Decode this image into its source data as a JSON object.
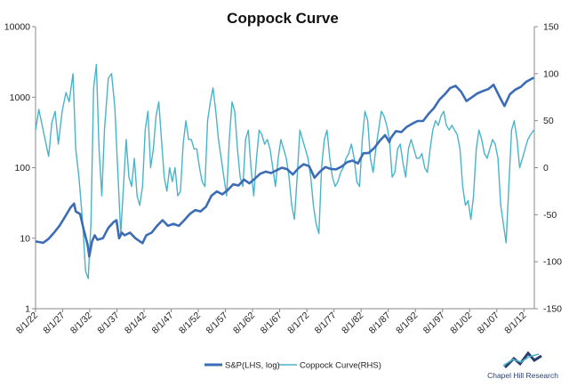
{
  "chart_data": {
    "type": "line",
    "title": "Coppock Curve",
    "y_left": {
      "scale": "log",
      "lim": [
        1,
        10000
      ],
      "ticks": [
        "1",
        "10",
        "100",
        "1000",
        "10000"
      ]
    },
    "y_right": {
      "scale": "linear",
      "lim": [
        -150,
        150
      ],
      "ticks": [
        "150",
        "100",
        "50",
        "0",
        "-50",
        "-100",
        "-150"
      ]
    },
    "x_ticks": [
      "8/1/22",
      "8/1/27",
      "8/1/32",
      "8/1/37",
      "8/1/42",
      "8/1/47",
      "8/1/52",
      "8/1/57",
      "8/1/62",
      "8/1/67",
      "8/1/72",
      "8/1/77",
      "8/1/82",
      "8/1/87",
      "8/1/92",
      "8/1/97",
      "8/1/02",
      "8/1/07",
      "8/1/12"
    ],
    "x_range": [
      1922.6,
      2014.5
    ],
    "grid": false,
    "legend_position": "bottom-center",
    "series": [
      {
        "name": "S&P(LHS, log)",
        "axis": "left",
        "color": "#3b6cb5",
        "points": [
          [
            1922.6,
            9.0
          ],
          [
            1924,
            8.6
          ],
          [
            1925,
            9.8
          ],
          [
            1926,
            12
          ],
          [
            1927,
            15
          ],
          [
            1928,
            20
          ],
          [
            1929,
            27
          ],
          [
            1929.7,
            31
          ],
          [
            1930,
            24
          ],
          [
            1930.8,
            22
          ],
          [
            1931.5,
            13
          ],
          [
            1932.2,
            8
          ],
          [
            1932.5,
            5.5
          ],
          [
            1933,
            9
          ],
          [
            1933.5,
            11
          ],
          [
            1934,
            9.5
          ],
          [
            1935,
            10
          ],
          [
            1936,
            14
          ],
          [
            1937,
            17
          ],
          [
            1937.5,
            18
          ],
          [
            1938,
            10
          ],
          [
            1938.5,
            12
          ],
          [
            1939,
            11
          ],
          [
            1940,
            12
          ],
          [
            1941,
            10
          ],
          [
            1942.3,
            8.5
          ],
          [
            1943,
            11
          ],
          [
            1944,
            12
          ],
          [
            1945,
            15
          ],
          [
            1946,
            18
          ],
          [
            1947,
            15
          ],
          [
            1948,
            16
          ],
          [
            1949,
            15
          ],
          [
            1950,
            18
          ],
          [
            1951,
            22
          ],
          [
            1952,
            25
          ],
          [
            1953,
            24
          ],
          [
            1954,
            28
          ],
          [
            1955,
            40
          ],
          [
            1956,
            46
          ],
          [
            1957,
            42
          ],
          [
            1958,
            48
          ],
          [
            1959,
            58
          ],
          [
            1960,
            56
          ],
          [
            1961,
            68
          ],
          [
            1962,
            60
          ],
          [
            1963,
            70
          ],
          [
            1964,
            82
          ],
          [
            1965,
            88
          ],
          [
            1966,
            84
          ],
          [
            1967,
            92
          ],
          [
            1968,
            100
          ],
          [
            1969,
            95
          ],
          [
            1970,
            80
          ],
          [
            1971,
            98
          ],
          [
            1972,
            112
          ],
          [
            1973,
            105
          ],
          [
            1974,
            72
          ],
          [
            1975,
            88
          ],
          [
            1976,
            102
          ],
          [
            1977,
            96
          ],
          [
            1978,
            95
          ],
          [
            1979,
            104
          ],
          [
            1980,
            120
          ],
          [
            1981,
            126
          ],
          [
            1982,
            115
          ],
          [
            1983,
            160
          ],
          [
            1984,
            162
          ],
          [
            1985,
            190
          ],
          [
            1986,
            240
          ],
          [
            1987,
            290
          ],
          [
            1987.8,
            230
          ],
          [
            1988,
            260
          ],
          [
            1989,
            330
          ],
          [
            1990,
            320
          ],
          [
            1991,
            380
          ],
          [
            1992,
            420
          ],
          [
            1993,
            460
          ],
          [
            1994,
            460
          ],
          [
            1995,
            580
          ],
          [
            1996,
            700
          ],
          [
            1997,
            920
          ],
          [
            1998,
            1100
          ],
          [
            1999,
            1350
          ],
          [
            2000,
            1450
          ],
          [
            2001,
            1200
          ],
          [
            2002,
            880
          ],
          [
            2003,
            1000
          ],
          [
            2004,
            1130
          ],
          [
            2005,
            1220
          ],
          [
            2006,
            1300
          ],
          [
            2007,
            1500
          ],
          [
            2008,
            1050
          ],
          [
            2009,
            750
          ],
          [
            2010,
            1100
          ],
          [
            2011,
            1280
          ],
          [
            2012,
            1400
          ],
          [
            2013,
            1650
          ],
          [
            2014.4,
            1900
          ]
        ]
      },
      {
        "name": "Coppock Curve(RHS)",
        "axis": "right",
        "color": "#49b4c9",
        "points": [
          [
            1922.6,
            40
          ],
          [
            1923.2,
            62
          ],
          [
            1924,
            40
          ],
          [
            1925,
            12
          ],
          [
            1925.6,
            48
          ],
          [
            1926.2,
            60
          ],
          [
            1926.8,
            25
          ],
          [
            1927.5,
            60
          ],
          [
            1928.2,
            80
          ],
          [
            1928.8,
            70
          ],
          [
            1929.5,
            100
          ],
          [
            1930,
            20
          ],
          [
            1930.6,
            -10
          ],
          [
            1931.3,
            -60
          ],
          [
            1931.8,
            -110
          ],
          [
            1932.3,
            -118
          ],
          [
            1932.8,
            -60
          ],
          [
            1933.3,
            85
          ],
          [
            1933.8,
            110
          ],
          [
            1934.3,
            20
          ],
          [
            1934.8,
            -30
          ],
          [
            1935.3,
            40
          ],
          [
            1936,
            95
          ],
          [
            1936.6,
            100
          ],
          [
            1937.2,
            65
          ],
          [
            1937.8,
            -10
          ],
          [
            1938.3,
            -70
          ],
          [
            1938.8,
            -20
          ],
          [
            1939.3,
            30
          ],
          [
            1939.8,
            -10
          ],
          [
            1940.3,
            -20
          ],
          [
            1940.8,
            10
          ],
          [
            1941.3,
            -30
          ],
          [
            1941.8,
            -40
          ],
          [
            1942.3,
            -20
          ],
          [
            1942.8,
            40
          ],
          [
            1943.3,
            60
          ],
          [
            1943.8,
            0
          ],
          [
            1944.3,
            20
          ],
          [
            1944.8,
            55
          ],
          [
            1945.3,
            70
          ],
          [
            1945.8,
            30
          ],
          [
            1946.3,
            -10
          ],
          [
            1946.8,
            -25
          ],
          [
            1947.3,
            0
          ],
          [
            1947.8,
            -15
          ],
          [
            1948.3,
            0
          ],
          [
            1948.8,
            -30
          ],
          [
            1949.3,
            -25
          ],
          [
            1949.8,
            25
          ],
          [
            1950.3,
            50
          ],
          [
            1950.8,
            30
          ],
          [
            1951.3,
            30
          ],
          [
            1951.8,
            20
          ],
          [
            1952.3,
            20
          ],
          [
            1952.8,
            0
          ],
          [
            1953.3,
            -15
          ],
          [
            1953.8,
            -20
          ],
          [
            1954.3,
            50
          ],
          [
            1954.8,
            70
          ],
          [
            1955.3,
            85
          ],
          [
            1955.8,
            60
          ],
          [
            1956.3,
            30
          ],
          [
            1956.8,
            10
          ],
          [
            1957.3,
            -10
          ],
          [
            1957.8,
            -30
          ],
          [
            1958.3,
            30
          ],
          [
            1958.8,
            70
          ],
          [
            1959.3,
            60
          ],
          [
            1959.8,
            20
          ],
          [
            1960.3,
            -10
          ],
          [
            1960.8,
            -20
          ],
          [
            1961.3,
            30
          ],
          [
            1961.8,
            40
          ],
          [
            1962.3,
            0
          ],
          [
            1962.8,
            -30
          ],
          [
            1963.3,
            10
          ],
          [
            1963.8,
            40
          ],
          [
            1964.3,
            35
          ],
          [
            1964.8,
            25
          ],
          [
            1965.3,
            30
          ],
          [
            1965.8,
            20
          ],
          [
            1966.3,
            0
          ],
          [
            1966.8,
            -20
          ],
          [
            1967.3,
            10
          ],
          [
            1967.8,
            30
          ],
          [
            1968.3,
            20
          ],
          [
            1968.8,
            10
          ],
          [
            1969.3,
            -10
          ],
          [
            1969.8,
            -40
          ],
          [
            1970.3,
            -55
          ],
          [
            1970.8,
            -10
          ],
          [
            1971.3,
            40
          ],
          [
            1971.8,
            30
          ],
          [
            1972.3,
            20
          ],
          [
            1972.8,
            10
          ],
          [
            1973.3,
            -10
          ],
          [
            1973.8,
            -40
          ],
          [
            1974.3,
            -60
          ],
          [
            1974.8,
            -70
          ],
          [
            1975.3,
            0
          ],
          [
            1975.8,
            30
          ],
          [
            1976.3,
            40
          ],
          [
            1976.8,
            10
          ],
          [
            1977.3,
            -10
          ],
          [
            1977.8,
            -20
          ],
          [
            1978.3,
            -15
          ],
          [
            1978.8,
            -5
          ],
          [
            1979.3,
            0
          ],
          [
            1979.8,
            10
          ],
          [
            1980.3,
            15
          ],
          [
            1980.8,
            25
          ],
          [
            1981.3,
            10
          ],
          [
            1981.8,
            -15
          ],
          [
            1982.3,
            -20
          ],
          [
            1982.8,
            30
          ],
          [
            1983.3,
            60
          ],
          [
            1983.8,
            50
          ],
          [
            1984.3,
            10
          ],
          [
            1984.8,
            -5
          ],
          [
            1985.3,
            20
          ],
          [
            1985.8,
            40
          ],
          [
            1986.3,
            60
          ],
          [
            1986.8,
            55
          ],
          [
            1987.3,
            45
          ],
          [
            1987.8,
            30
          ],
          [
            1988.3,
            -10
          ],
          [
            1988.8,
            -5
          ],
          [
            1989.3,
            20
          ],
          [
            1989.8,
            25
          ],
          [
            1990.3,
            5
          ],
          [
            1990.8,
            -10
          ],
          [
            1991.3,
            20
          ],
          [
            1991.8,
            30
          ],
          [
            1992.3,
            20
          ],
          [
            1992.8,
            10
          ],
          [
            1993.3,
            10
          ],
          [
            1993.8,
            15
          ],
          [
            1994.3,
            0
          ],
          [
            1994.8,
            -5
          ],
          [
            1995.3,
            20
          ],
          [
            1995.8,
            40
          ],
          [
            1996.3,
            50
          ],
          [
            1996.8,
            45
          ],
          [
            1997.3,
            55
          ],
          [
            1997.8,
            60
          ],
          [
            1998.3,
            45
          ],
          [
            1998.8,
            40
          ],
          [
            1999.3,
            45
          ],
          [
            1999.8,
            40
          ],
          [
            2000.3,
            35
          ],
          [
            2000.8,
            20
          ],
          [
            2001.3,
            -20
          ],
          [
            2001.8,
            -40
          ],
          [
            2002.3,
            -35
          ],
          [
            2002.8,
            -55
          ],
          [
            2003.3,
            -30
          ],
          [
            2003.8,
            20
          ],
          [
            2004.3,
            40
          ],
          [
            2004.8,
            30
          ],
          [
            2005.3,
            15
          ],
          [
            2005.8,
            10
          ],
          [
            2006.3,
            20
          ],
          [
            2006.8,
            30
          ],
          [
            2007.3,
            25
          ],
          [
            2007.8,
            10
          ],
          [
            2008.3,
            -40
          ],
          [
            2008.8,
            -60
          ],
          [
            2009.3,
            -80
          ],
          [
            2009.8,
            -20
          ],
          [
            2010.3,
            40
          ],
          [
            2010.8,
            50
          ],
          [
            2011.3,
            30
          ],
          [
            2011.8,
            0
          ],
          [
            2012.3,
            10
          ],
          [
            2012.8,
            20
          ],
          [
            2013.3,
            30
          ],
          [
            2013.8,
            35
          ],
          [
            2014.4,
            40
          ]
        ]
      }
    ]
  },
  "brand": {
    "name": "Chapel Hill Research",
    "colors": {
      "dark": "#2a3f6e",
      "light": "#49b4c9"
    }
  }
}
